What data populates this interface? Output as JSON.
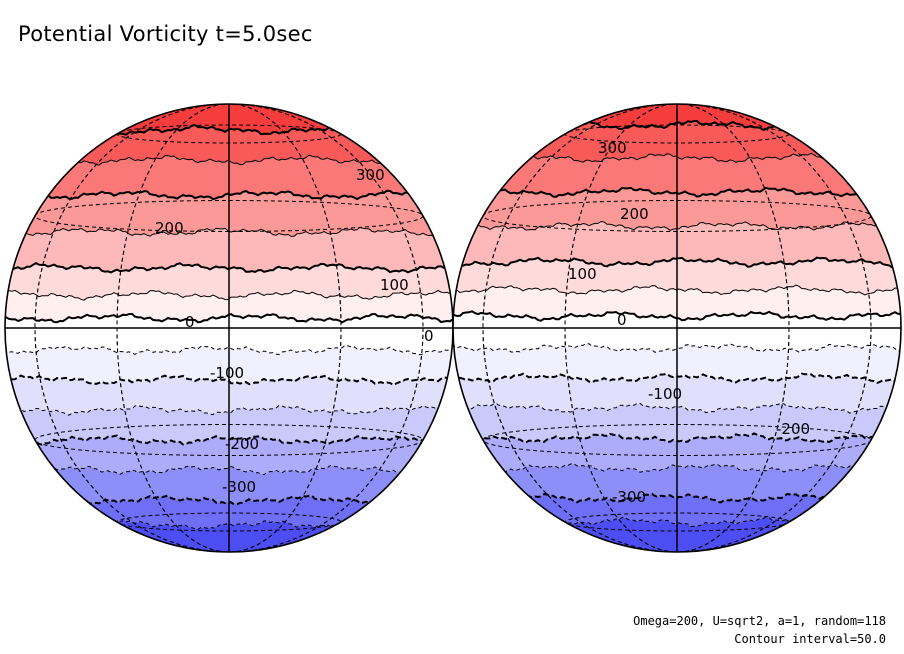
{
  "title": "Potential Vorticity t=5.0sec",
  "footer": {
    "line1": "Omega=200, U=sqrt2, a=1, random=118",
    "line2": "Contour interval=50.0"
  },
  "map": {
    "projection": "orthographic, two hemispheres",
    "contour_interval": 50.0,
    "contour_levels": [
      -350,
      -300,
      -250,
      -200,
      -150,
      -100,
      -50,
      0,
      50,
      100,
      150,
      200,
      250,
      300,
      350
    ],
    "level_colors": {
      "pos_350": "#f63d3d",
      "pos_300": "#f85a5a",
      "pos_250": "#fa7878",
      "pos_200": "#fb9898",
      "pos_150": "#fdb9b9",
      "pos_100": "#fedada",
      "pos_50": "#ffefef",
      "zero": "#ffffff",
      "neg_50": "#f0f0ff",
      "neg_100": "#e0e0fd",
      "neg_150": "#c9c9fc",
      "neg_200": "#acacfa",
      "neg_250": "#8e8ef8",
      "neg_300": "#6e6ef6",
      "neg_350": "#4d4df4"
    },
    "left_globe_labels": [
      "300",
      "200",
      "100",
      "0",
      "0",
      "-100",
      "-200",
      "-300"
    ],
    "right_globe_labels": [
      "300",
      "200",
      "100",
      "0",
      "-100",
      "-200",
      "-300"
    ]
  }
}
